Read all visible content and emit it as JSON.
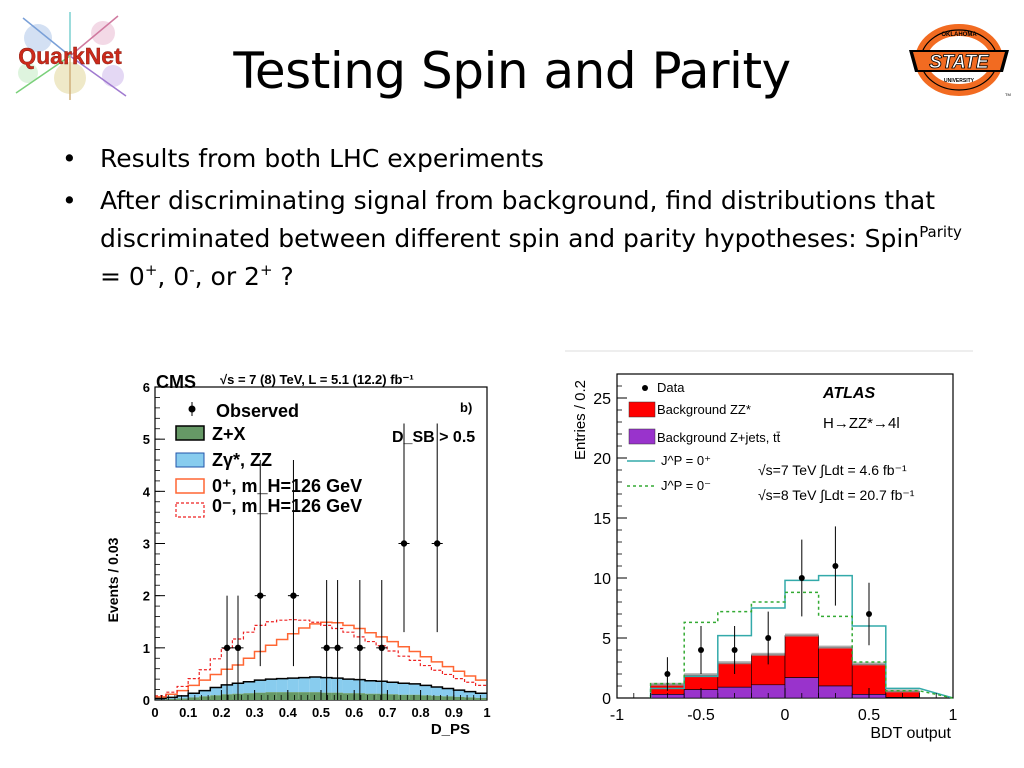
{
  "slide": {
    "title": "Testing Spin and Parity",
    "bullets": [
      {
        "text": "Results from both LHC experiments"
      },
      {
        "text": "After discriminating signal from background, find distributions that discriminated between different spin and parity hypotheses:  Spin",
        "sup1": "Parity",
        "mid1": "  =  0",
        "sup2": "+",
        "mid2": ",  0",
        "sup3": "-",
        "mid3": ",  or  2",
        "sup4": "+",
        "end": " ?"
      }
    ],
    "bullet_symbol": "•"
  },
  "logos": {
    "left": {
      "text": "QuarkNet"
    },
    "right": {
      "line1": "OKLAHOMA",
      "line2": "STATE",
      "line3": "UNIVERSITY",
      "tm": "TM"
    }
  },
  "colors": {
    "osu_orange": "#f26b21",
    "quarknet_red": "#cc2a1b",
    "zz_red": "#ff0000",
    "zjets_purple": "#9933cc",
    "atlas_cyan": "#33aaaa",
    "atlas_green": "#33aa33",
    "cms_green": "#669966",
    "cms_blue": "#88ccee",
    "cms_orange": "#ff6633",
    "cms_red": "#ee2222"
  },
  "chart_data": [
    {
      "type": "bar",
      "experiment": "CMS",
      "title": "CMS",
      "subtitle": "√s = 7 (8) TeV, L = 5.1 (12.2) fb⁻¹",
      "panel_label": "b)",
      "cut_label": "D_SB > 0.5",
      "xlabel": "D_PS",
      "ylabel": "Events / 0.03",
      "xlim": [
        0,
        1
      ],
      "ylim": [
        0,
        6
      ],
      "xticks": [
        "0",
        "0.1",
        "0.2",
        "0.3",
        "0.4",
        "0.5",
        "0.6",
        "0.7",
        "0.8",
        "0.9",
        "1"
      ],
      "yticks": [
        "0",
        "1",
        "2",
        "3",
        "4",
        "5",
        "6"
      ],
      "bin_width": 0.0333,
      "legend_placement": "top-left",
      "legend": [
        "Observed",
        "Z+X",
        "Zγ*, ZZ",
        "0⁺, m_H=126 GeV",
        "0⁻, m_H=126 GeV"
      ],
      "observed": {
        "x": [
          0.217,
          0.25,
          0.317,
          0.417,
          0.517,
          0.55,
          0.617,
          0.683,
          0.75,
          0.85
        ],
        "y": [
          1,
          1,
          2,
          2,
          1,
          1,
          1,
          1,
          3,
          3
        ],
        "err_lo": [
          1,
          1,
          1.35,
          1.35,
          1,
          1,
          1,
          1,
          1.7,
          1.7
        ],
        "err_hi": [
          1,
          1,
          2.6,
          2.6,
          1.3,
          1.3,
          1.3,
          1.3,
          2.3,
          2.3
        ]
      },
      "series": [
        {
          "name": "Z+X",
          "values": [
            0.01,
            0.02,
            0.03,
            0.05,
            0.07,
            0.09,
            0.11,
            0.12,
            0.13,
            0.14,
            0.15,
            0.15,
            0.15,
            0.15,
            0.15,
            0.14,
            0.14,
            0.13,
            0.13,
            0.12,
            0.12,
            0.11,
            0.1,
            0.1,
            0.09,
            0.08,
            0.07,
            0.06,
            0.05,
            0.04
          ]
        },
        {
          "name": "Zγ*, ZZ",
          "values": [
            0.02,
            0.03,
            0.05,
            0.08,
            0.11,
            0.15,
            0.18,
            0.2,
            0.22,
            0.24,
            0.25,
            0.26,
            0.27,
            0.28,
            0.29,
            0.29,
            0.28,
            0.27,
            0.26,
            0.25,
            0.24,
            0.23,
            0.22,
            0.21,
            0.19,
            0.17,
            0.15,
            0.13,
            0.11,
            0.09
          ]
        },
        {
          "name": "0⁺, m_H=126 GeV",
          "values": [
            0.03,
            0.06,
            0.1,
            0.15,
            0.2,
            0.25,
            0.3,
            0.35,
            0.45,
            0.55,
            0.65,
            0.75,
            0.85,
            0.95,
            1.02,
            1.06,
            1.06,
            1.03,
            0.98,
            0.92,
            0.85,
            0.78,
            0.7,
            0.62,
            0.55,
            0.48,
            0.42,
            0.36,
            0.3,
            0.25
          ]
        },
        {
          "name": "0⁻, m_H=126 GeV",
          "values": [
            0.05,
            0.1,
            0.18,
            0.28,
            0.4,
            0.55,
            0.7,
            0.85,
            0.95,
            1.05,
            1.1,
            1.12,
            1.12,
            1.1,
            1.05,
            1.0,
            0.95,
            0.9,
            0.82,
            0.75,
            0.68,
            0.6,
            0.52,
            0.45,
            0.38,
            0.32,
            0.27,
            0.22,
            0.18,
            0.15
          ]
        }
      ]
    },
    {
      "type": "bar",
      "experiment": "ATLAS",
      "title": "ATLAS",
      "subtitle": "H→ZZ*→4l",
      "energy_labels": [
        "√s=7 TeV  ∫Ldt = 4.6 fb⁻¹",
        "√s=8 TeV  ∫Ldt = 20.7 fb⁻¹"
      ],
      "xlabel": "BDT output",
      "ylabel": "Entries / 0.2",
      "xlim": [
        -1,
        1
      ],
      "ylim": [
        0,
        27
      ],
      "xticks": [
        "-1",
        "-0.5",
        "0",
        "0.5",
        "1"
      ],
      "yticks": [
        "0",
        "5",
        "10",
        "15",
        "20",
        "25"
      ],
      "bin_edges": [
        -0.8,
        -0.6,
        -0.4,
        -0.2,
        0.0,
        0.2,
        0.4,
        0.6,
        0.8
      ],
      "legend_placement": "top-left",
      "legend": [
        "Data",
        "Background ZZ*",
        "Background Z+jets, tt̄",
        "J^P = 0⁺",
        "J^P = 0⁻"
      ],
      "data": {
        "x": [
          -0.7,
          -0.5,
          -0.3,
          -0.1,
          0.1,
          0.3,
          0.5
        ],
        "y": [
          2,
          4,
          4,
          5,
          10,
          11,
          7
        ],
        "err": [
          1.4,
          2.0,
          2.0,
          2.2,
          3.2,
          3.3,
          2.6
        ]
      },
      "series": [
        {
          "name": "Background Z+jets, tt̄",
          "values": [
            0.3,
            0.7,
            0.9,
            1.1,
            1.7,
            1.0,
            0.3,
            0.05
          ]
        },
        {
          "name": "Background ZZ*",
          "values": [
            0.8,
            1.2,
            2.0,
            2.5,
            3.5,
            3.2,
            2.5,
            0.5
          ]
        },
        {
          "name": "J^P = 0⁺",
          "values": [
            0.8,
            1.8,
            5.2,
            7.5,
            9.8,
            10.2,
            6.0,
            0.8
          ]
        },
        {
          "name": "J^P = 0⁻",
          "values": [
            1.2,
            6.3,
            7.2,
            8.0,
            8.8,
            6.8,
            3.0,
            0.6
          ]
        }
      ]
    }
  ]
}
